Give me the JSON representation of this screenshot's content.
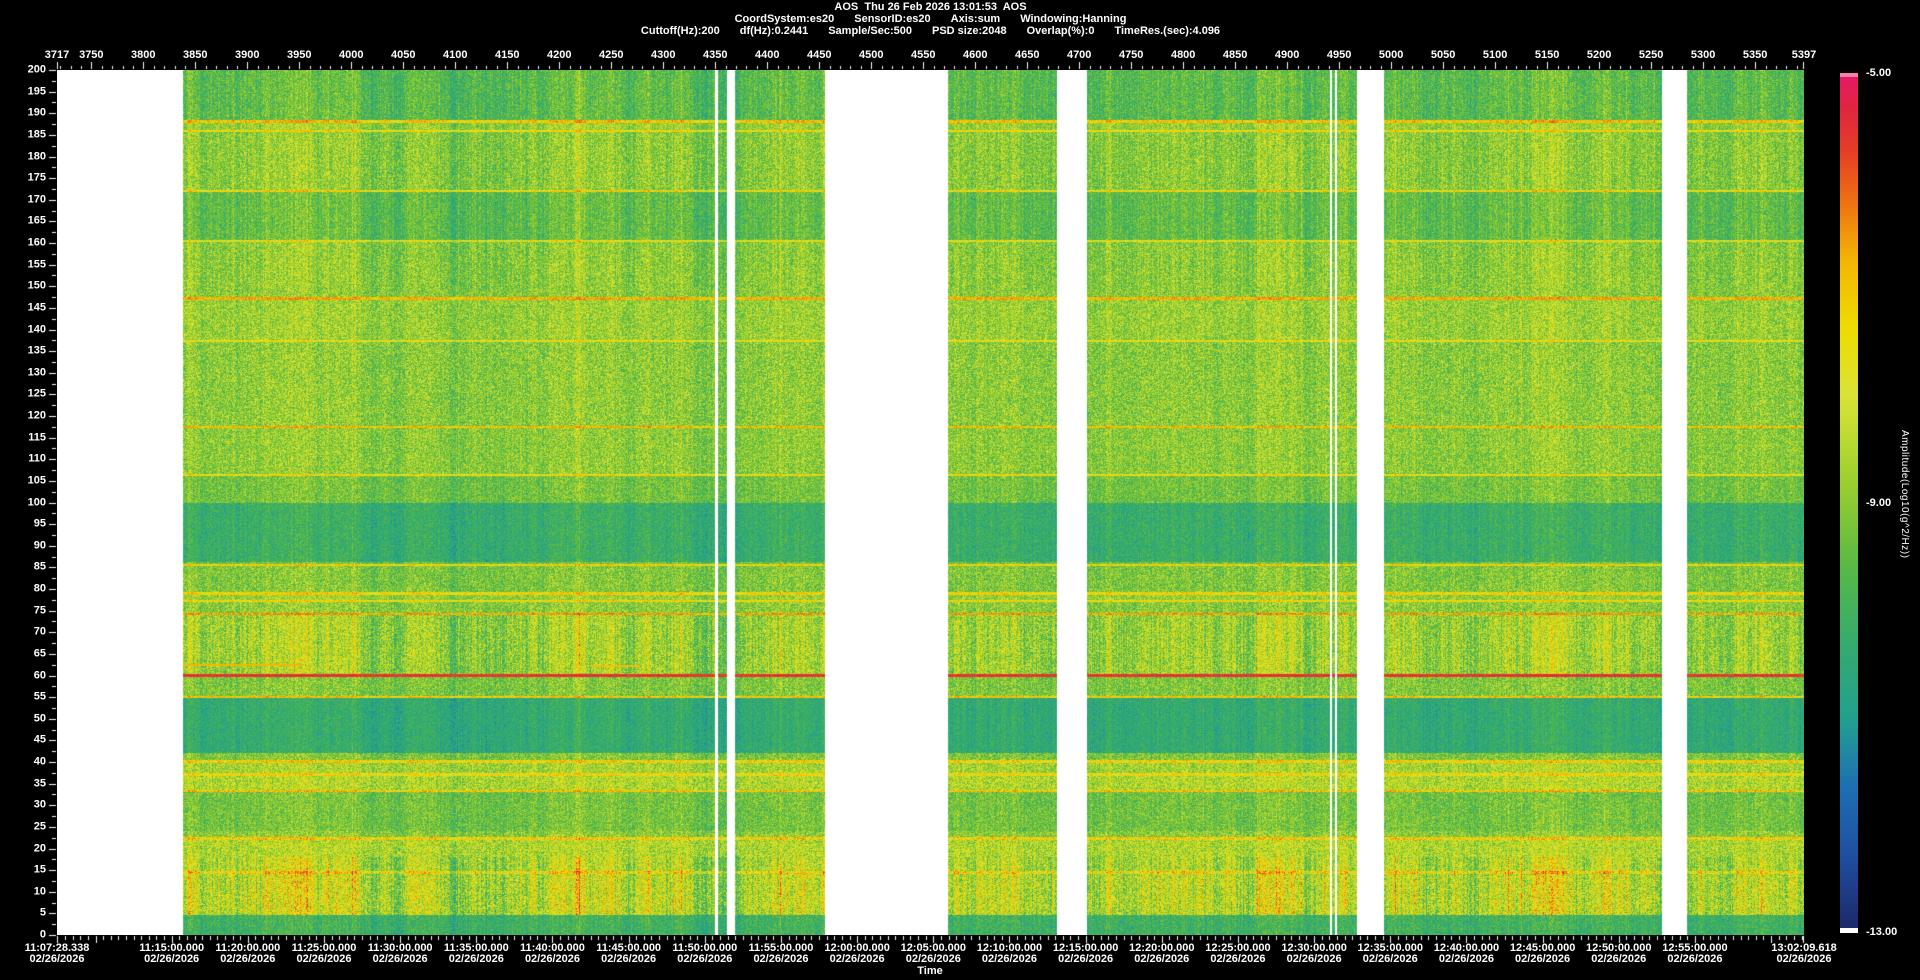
{
  "header": {
    "line1": "AOS  Thu 26 Feb 2026 13:01:53  AOS",
    "line2_items": [
      "CoordSystem:es20",
      "SensorID:es20",
      "Axis:sum",
      "Windowing:Hanning"
    ],
    "line3_items": [
      "Cuttoff(Hz):200",
      "df(Hz):0.2441",
      "Sample/Sec:500",
      "PSD size:2048",
      "Overlap(%):0",
      "TimeRes.(sec):4.096"
    ]
  },
  "chart_data": {
    "type": "heatmap",
    "title": "AOS  Thu 26 Feb 2026 13:01:53  AOS",
    "record_axis": {
      "range": [
        3717,
        5397
      ],
      "ticks": [
        3717,
        3750,
        3800,
        3850,
        3900,
        3950,
        4000,
        4050,
        4100,
        4150,
        4200,
        4250,
        4300,
        4350,
        4400,
        4450,
        4500,
        4550,
        4600,
        4650,
        4700,
        4750,
        4800,
        4850,
        4900,
        4950,
        5000,
        5050,
        5100,
        5150,
        5200,
        5250,
        5300,
        5350,
        5397
      ],
      "minor_tick_step": 10
    },
    "freq_axis": {
      "range": [
        0,
        200
      ],
      "ticks": [
        200,
        195,
        190,
        185,
        180,
        175,
        170,
        165,
        160,
        155,
        150,
        145,
        140,
        135,
        130,
        125,
        120,
        115,
        110,
        105,
        100,
        95,
        90,
        85,
        80,
        75,
        70,
        65,
        60,
        55,
        50,
        45,
        40,
        35,
        30,
        25,
        20,
        15,
        10,
        5,
        0
      ],
      "minor_tick_step": 2.5
    },
    "time_axis": {
      "label": "Time",
      "start": "11:07:28.338",
      "end": "13:02:09.618",
      "date": "02/26/2026",
      "ticks": [
        "11:07:28.338",
        "11:15:00.000",
        "11:20:00.000",
        "11:25:00.000",
        "11:30:00.000",
        "11:35:00.000",
        "11:40:00.000",
        "11:45:00.000",
        "11:50:00.000",
        "11:55:00.000",
        "12:00:00.000",
        "12:05:00.000",
        "12:10:00.000",
        "12:15:00.000",
        "12:20:00.000",
        "12:25:00.000",
        "12:30:00.000",
        "12:35:00.000",
        "12:40:00.000",
        "12:45:00.000",
        "12:50:00.000",
        "12:55:00.000",
        "13:02:09.618"
      ],
      "minor_tick_sec": 30
    },
    "colorbar": {
      "label": "Amplitude(Log10(g^2/Hz))",
      "tick_labels": [
        "-5.00",
        "-9.00",
        "-13.00"
      ],
      "amplitude_range": [
        -13.0,
        -5.0
      ],
      "cap_color": "#f581ac",
      "base_strip_color": "#ffffff"
    },
    "colormap_stops": [
      [
        0.0,
        "#1d2a6b"
      ],
      [
        0.08,
        "#1f4fa0"
      ],
      [
        0.16,
        "#1e6db3"
      ],
      [
        0.24,
        "#21a08f"
      ],
      [
        0.33,
        "#35ab6d"
      ],
      [
        0.42,
        "#58b945"
      ],
      [
        0.52,
        "#9ccf2e"
      ],
      [
        0.62,
        "#d9e335"
      ],
      [
        0.7,
        "#eedc00"
      ],
      [
        0.78,
        "#f3b505"
      ],
      [
        0.85,
        "#ee7012"
      ],
      [
        0.91,
        "#e63c28"
      ],
      [
        0.96,
        "#e02540"
      ],
      [
        1.0,
        "#e8176b"
      ]
    ],
    "background_gap_color": "#ffffff",
    "data_blocks": [
      [
        126,
        658
      ],
      [
        661,
        670
      ],
      [
        678,
        768
      ],
      [
        891,
        1000
      ],
      [
        1030,
        1273
      ],
      [
        1275,
        1278
      ],
      [
        1280,
        1300
      ],
      [
        1327,
        1605
      ],
      [
        1630,
        1747
      ]
    ],
    "bands": [
      [
        0,
        4.5,
        0.36,
        0.1
      ],
      [
        4.5,
        13.9,
        0.58,
        0.16
      ],
      [
        13.9,
        14.6,
        0.7,
        0.12
      ],
      [
        14.6,
        21.8,
        0.56,
        0.14
      ],
      [
        21.8,
        22.6,
        0.72,
        0.11
      ],
      [
        22.6,
        24,
        0.5,
        0.12
      ],
      [
        24,
        32.9,
        0.46,
        0.11
      ],
      [
        32.9,
        33.4,
        0.74,
        0.1
      ],
      [
        33.4,
        36.8,
        0.56,
        0.13
      ],
      [
        36.8,
        37.3,
        0.7,
        0.09
      ],
      [
        37.3,
        39.8,
        0.54,
        0.12
      ],
      [
        39.8,
        40.3,
        0.72,
        0.09
      ],
      [
        40.3,
        42,
        0.48,
        0.12
      ],
      [
        42,
        54.8,
        0.32,
        0.08
      ],
      [
        54.8,
        55.3,
        0.74,
        0.08
      ],
      [
        55.3,
        59.6,
        0.48,
        0.12
      ],
      [
        59.6,
        60.4,
        0.93,
        0.03
      ],
      [
        60.4,
        74,
        0.53,
        0.14
      ],
      [
        74,
        74.5,
        0.8,
        0.06
      ],
      [
        74.5,
        76.9,
        0.5,
        0.12
      ],
      [
        76.9,
        77.4,
        0.7,
        0.07
      ],
      [
        77.4,
        78.7,
        0.52,
        0.1
      ],
      [
        78.7,
        79.2,
        0.72,
        0.07
      ],
      [
        79.2,
        85.3,
        0.48,
        0.12
      ],
      [
        85.3,
        85.8,
        0.71,
        0.08
      ],
      [
        85.8,
        86.3,
        0.46,
        0.1
      ],
      [
        86.3,
        100,
        0.34,
        0.09
      ],
      [
        100,
        106.2,
        0.46,
        0.11
      ],
      [
        106.2,
        106.7,
        0.69,
        0.08
      ],
      [
        106.7,
        117.2,
        0.5,
        0.12
      ],
      [
        117.2,
        117.8,
        0.76,
        0.07
      ],
      [
        117.8,
        137.1,
        0.5,
        0.13
      ],
      [
        137.1,
        137.6,
        0.67,
        0.08
      ],
      [
        137.6,
        146.8,
        0.52,
        0.12
      ],
      [
        146.8,
        147.6,
        0.78,
        0.06
      ],
      [
        147.6,
        160.2,
        0.5,
        0.12
      ],
      [
        160.2,
        160.7,
        0.66,
        0.08
      ],
      [
        160.7,
        171.9,
        0.43,
        0.1
      ],
      [
        171.9,
        172.4,
        0.7,
        0.07
      ],
      [
        172.4,
        185.7,
        0.5,
        0.12
      ],
      [
        185.7,
        186.2,
        0.69,
        0.06
      ],
      [
        186.2,
        187.9,
        0.52,
        0.1
      ],
      [
        187.9,
        188.6,
        0.75,
        0.06
      ],
      [
        188.6,
        200.1,
        0.42,
        0.11
      ]
    ],
    "partial_lines": [
      [
        62.5,
        126,
        243,
        0.78
      ],
      [
        62.2,
        533,
        583,
        0.76
      ]
    ]
  }
}
